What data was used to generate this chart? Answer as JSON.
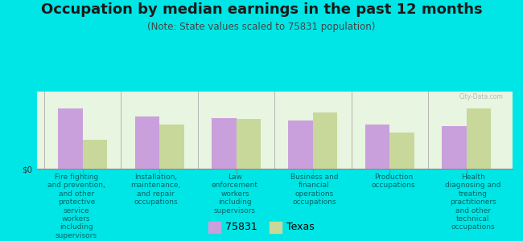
{
  "title": "Occupation by median earnings in the past 12 months",
  "subtitle": "(Note: State values scaled to 75831 population)",
  "categories": [
    "Fire fighting\nand prevention,\nand other\nprotective\nservice\nworkers\nincluding\nsupervisors",
    "Installation,\nmaintenance,\nand repair\noccupations",
    "Law\nenforcement\nworkers\nincluding\nsupervisors",
    "Business and\nfinancial\noperations\noccupations",
    "Production\noccupations",
    "Health\ndiagnosing and\ntreating\npractitioners\nand other\ntechnical\noccupations"
  ],
  "values_75831": [
    0.78,
    0.68,
    0.66,
    0.62,
    0.57,
    0.55
  ],
  "values_texas": [
    0.38,
    0.57,
    0.65,
    0.73,
    0.47,
    0.78
  ],
  "color_75831": "#c9a0dc",
  "color_texas": "#c8d89a",
  "background_outer": "#00e5e5",
  "background_plot": "#e8f5e0",
  "ylabel": "$0",
  "bar_width": 0.32,
  "legend_labels": [
    "75831",
    "Texas"
  ],
  "title_fontsize": 13,
  "subtitle_fontsize": 8.5,
  "tick_fontsize": 7.5,
  "cat_fontsize": 6.5,
  "legend_fontsize": 9,
  "watermark": "City-Data.com"
}
